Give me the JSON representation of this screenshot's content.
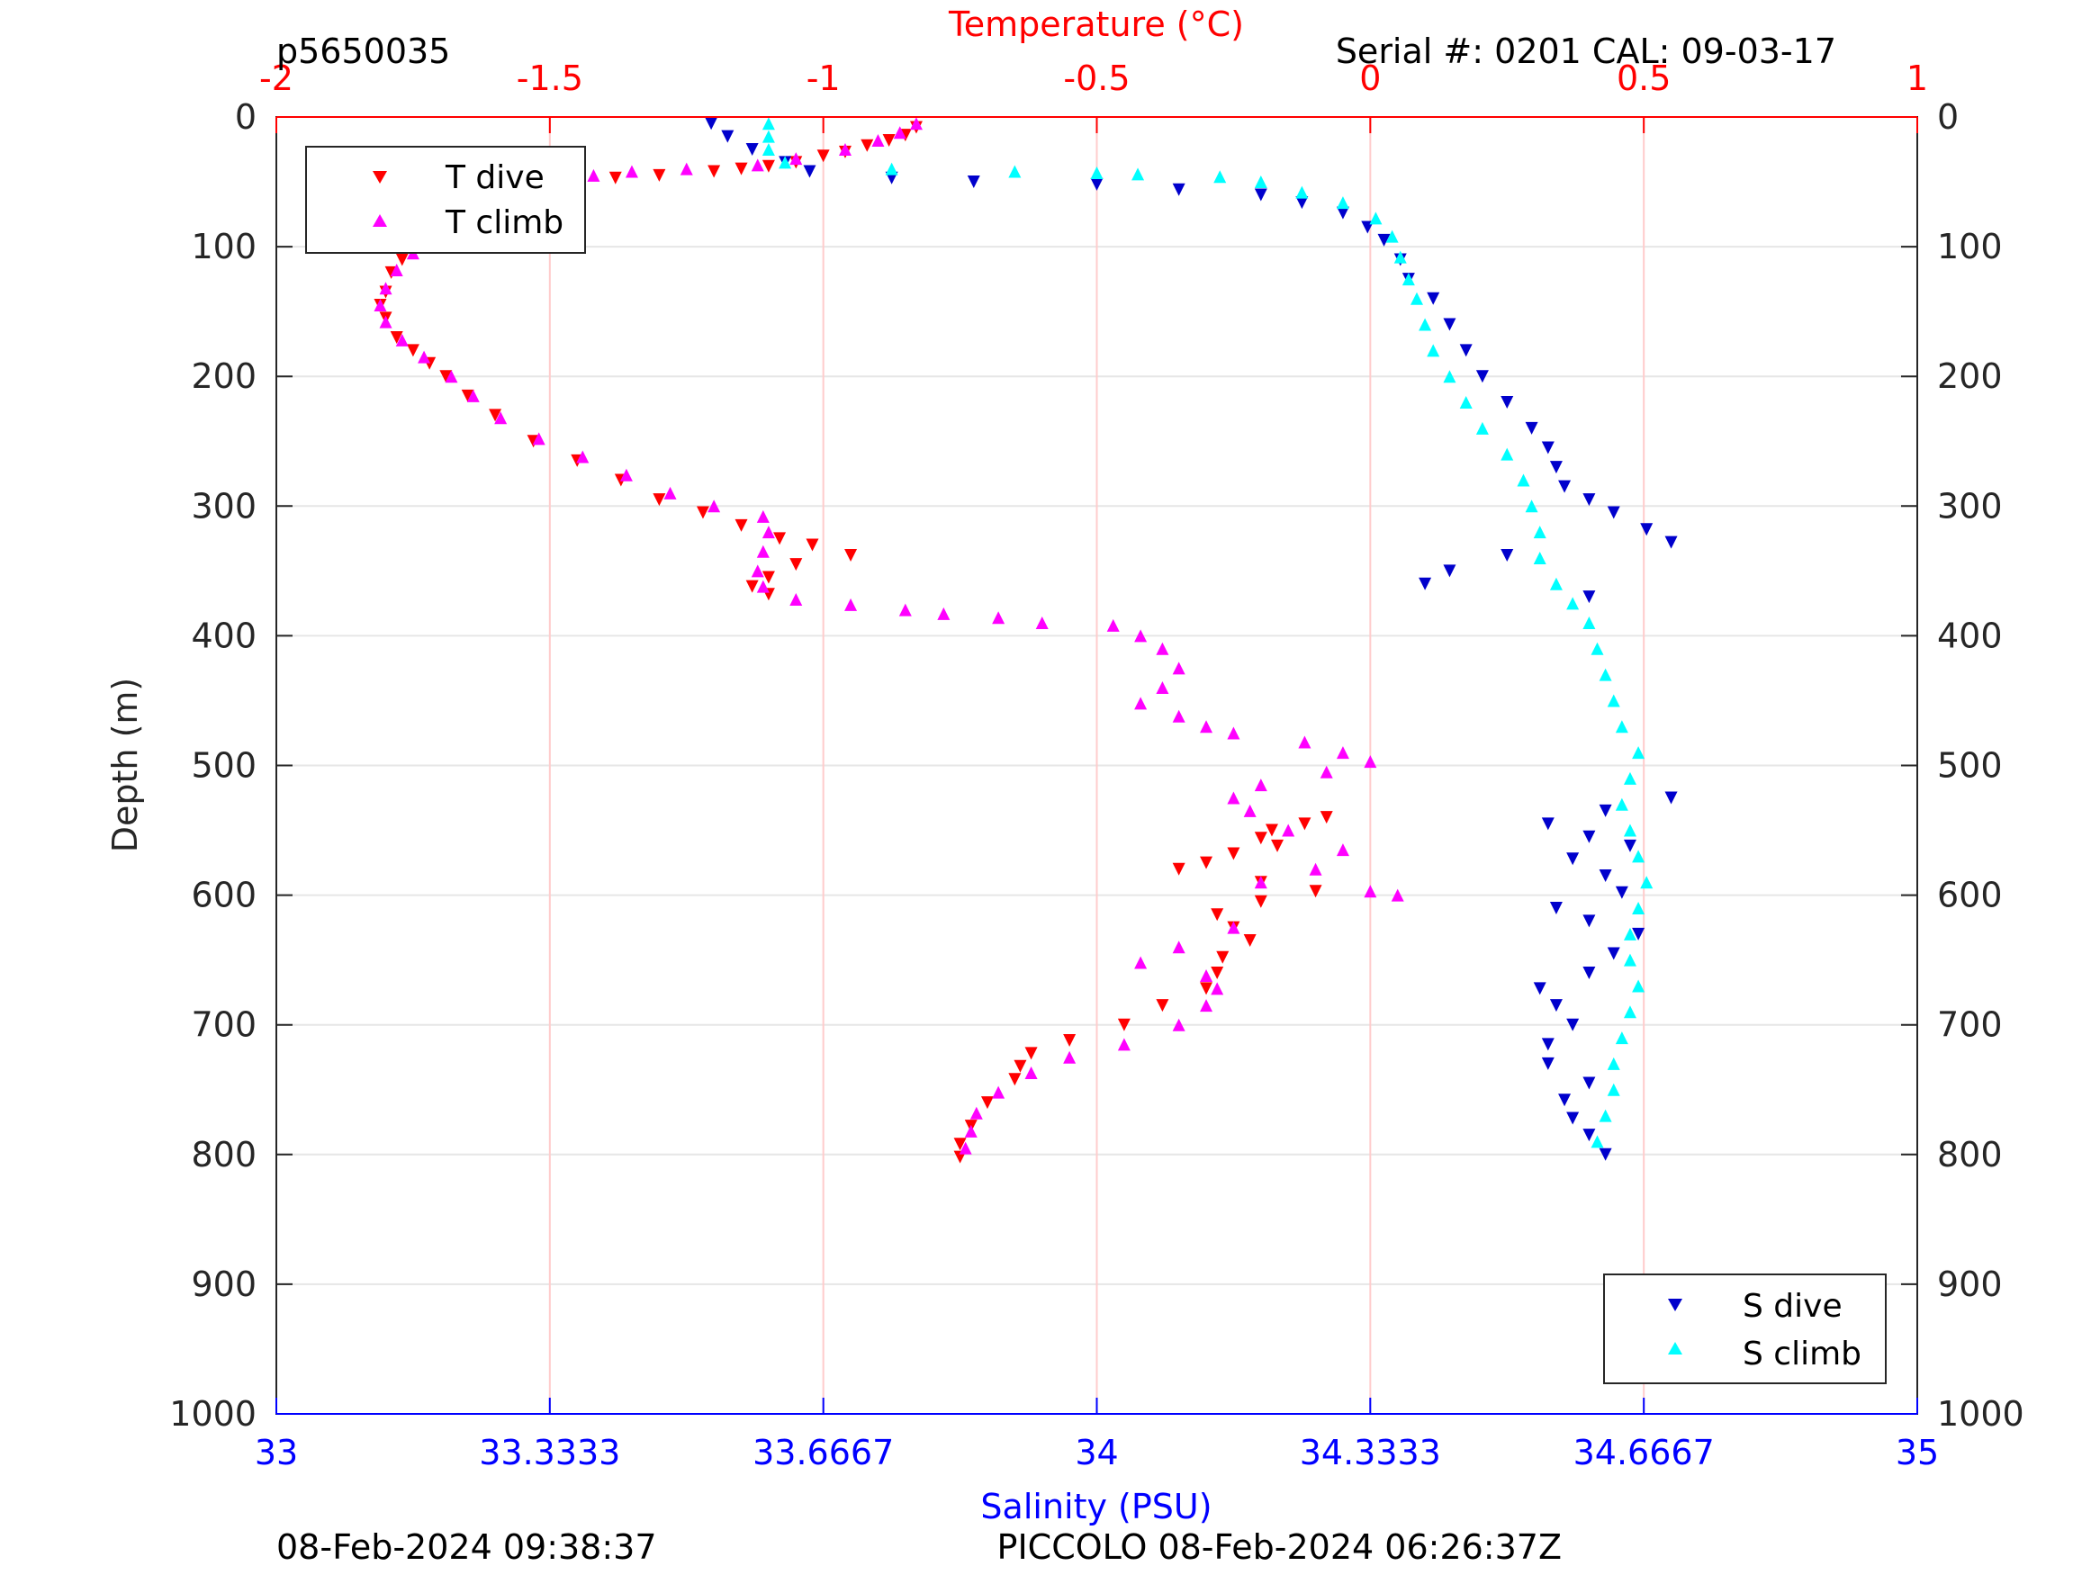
{
  "header": {
    "profile_id": "p5650035",
    "serial": "Serial #: 0201  CAL: 09-03-17"
  },
  "footer": {
    "left": "08-Feb-2024 09:38:37",
    "right": "PICCOLO 08-Feb-2024 06:26:37Z"
  },
  "colors": {
    "t_dive": "#ff0000",
    "t_climb": "#ff00ff",
    "s_dive": "#0000cc",
    "s_climb": "#00ffff",
    "temp_axis": "#ff0000",
    "sal_axis": "#0000ff",
    "depth_axis": "#262626",
    "grid": "#e6e6e6",
    "temp_grid": "#ffcccc"
  },
  "chart_data": {
    "type": "scatter",
    "title": "",
    "ylabel": "Depth (m)",
    "ylim": [
      0,
      1000
    ],
    "y_reversed": true,
    "yticks": [
      0,
      100,
      200,
      300,
      400,
      500,
      600,
      700,
      800,
      900,
      1000
    ],
    "temperature_axis": {
      "label": "Temperature (°C)",
      "lim": [
        -2,
        1
      ],
      "ticks": [
        -2,
        -1.5,
        -1,
        -0.5,
        0,
        0.5,
        1
      ],
      "tick_labels": [
        "-2",
        "-1.5",
        "-1",
        "-0.5",
        "0",
        "0.5",
        "1"
      ],
      "position": "top"
    },
    "salinity_axis": {
      "label": "Salinity (PSU)",
      "lim": [
        33,
        35
      ],
      "ticks": [
        33,
        33.3333,
        33.6667,
        34,
        34.3333,
        34.6667,
        35
      ],
      "tick_labels": [
        "33",
        "33.3333",
        "33.6667",
        "34",
        "34.3333",
        "34.6667",
        "35"
      ],
      "position": "bottom"
    },
    "grid": true,
    "legends": [
      {
        "placement": "top-left",
        "entries": [
          "T dive",
          "T climb"
        ]
      },
      {
        "placement": "bottom-right",
        "entries": [
          "S dive",
          "S climb"
        ]
      }
    ],
    "series": [
      {
        "name": "T dive",
        "axis": "temperature",
        "marker": "triangle-down",
        "points": [
          [
            -0.83,
            8
          ],
          [
            -0.85,
            14
          ],
          [
            -0.88,
            18
          ],
          [
            -0.92,
            22
          ],
          [
            -0.96,
            27
          ],
          [
            -1.0,
            30
          ],
          [
            -1.05,
            35
          ],
          [
            -1.1,
            38
          ],
          [
            -1.15,
            40
          ],
          [
            -1.2,
            42
          ],
          [
            -1.3,
            45
          ],
          [
            -1.38,
            47
          ],
          [
            -1.45,
            50
          ],
          [
            -1.52,
            54
          ],
          [
            -1.58,
            60
          ],
          [
            -1.63,
            70
          ],
          [
            -1.68,
            80
          ],
          [
            -1.71,
            90
          ],
          [
            -1.74,
            100
          ],
          [
            -1.77,
            110
          ],
          [
            -1.79,
            120
          ],
          [
            -1.8,
            135
          ],
          [
            -1.81,
            145
          ],
          [
            -1.8,
            155
          ],
          [
            -1.78,
            170
          ],
          [
            -1.75,
            180
          ],
          [
            -1.72,
            190
          ],
          [
            -1.69,
            200
          ],
          [
            -1.65,
            215
          ],
          [
            -1.6,
            230
          ],
          [
            -1.53,
            250
          ],
          [
            -1.45,
            265
          ],
          [
            -1.37,
            280
          ],
          [
            -1.3,
            295
          ],
          [
            -1.22,
            305
          ],
          [
            -1.15,
            315
          ],
          [
            -1.08,
            325
          ],
          [
            -1.02,
            330
          ],
          [
            -0.95,
            338
          ],
          [
            -1.05,
            345
          ],
          [
            -1.1,
            355
          ],
          [
            -1.13,
            362
          ],
          [
            -1.1,
            368
          ],
          [
            -0.08,
            540
          ],
          [
            -0.12,
            545
          ],
          [
            -0.18,
            550
          ],
          [
            -0.2,
            556
          ],
          [
            -0.17,
            562
          ],
          [
            -0.25,
            568
          ],
          [
            -0.3,
            575
          ],
          [
            -0.35,
            580
          ],
          [
            -0.2,
            590
          ],
          [
            -0.1,
            597
          ],
          [
            -0.2,
            605
          ],
          [
            -0.28,
            615
          ],
          [
            -0.25,
            625
          ],
          [
            -0.22,
            635
          ],
          [
            -0.27,
            648
          ],
          [
            -0.28,
            660
          ],
          [
            -0.3,
            672
          ],
          [
            -0.38,
            685
          ],
          [
            -0.45,
            700
          ],
          [
            -0.55,
            712
          ],
          [
            -0.62,
            722
          ],
          [
            -0.64,
            732
          ],
          [
            -0.65,
            742
          ],
          [
            -0.7,
            760
          ],
          [
            -0.73,
            778
          ],
          [
            -0.75,
            792
          ],
          [
            -0.75,
            802
          ]
        ]
      },
      {
        "name": "T climb",
        "axis": "temperature",
        "marker": "triangle-up",
        "points": [
          [
            -0.83,
            5
          ],
          [
            -0.86,
            12
          ],
          [
            -0.9,
            18
          ],
          [
            -0.96,
            25
          ],
          [
            -1.05,
            32
          ],
          [
            -1.12,
            37
          ],
          [
            -1.25,
            40
          ],
          [
            -1.35,
            42
          ],
          [
            -1.42,
            45
          ],
          [
            -1.5,
            50
          ],
          [
            -1.57,
            58
          ],
          [
            -1.62,
            68
          ],
          [
            -1.67,
            80
          ],
          [
            -1.71,
            92
          ],
          [
            -1.75,
            105
          ],
          [
            -1.78,
            118
          ],
          [
            -1.8,
            132
          ],
          [
            -1.81,
            145
          ],
          [
            -1.8,
            158
          ],
          [
            -1.77,
            172
          ],
          [
            -1.73,
            185
          ],
          [
            -1.68,
            200
          ],
          [
            -1.64,
            215
          ],
          [
            -1.59,
            232
          ],
          [
            -1.52,
            248
          ],
          [
            -1.44,
            262
          ],
          [
            -1.36,
            276
          ],
          [
            -1.28,
            290
          ],
          [
            -1.2,
            300
          ],
          [
            -1.11,
            308
          ],
          [
            -1.1,
            320
          ],
          [
            -1.11,
            335
          ],
          [
            -1.12,
            350
          ],
          [
            -1.11,
            362
          ],
          [
            -1.05,
            372
          ],
          [
            -0.95,
            376
          ],
          [
            -0.85,
            380
          ],
          [
            -0.78,
            383
          ],
          [
            -0.68,
            386
          ],
          [
            -0.6,
            390
          ],
          [
            -0.47,
            392
          ],
          [
            -0.42,
            400
          ],
          [
            -0.38,
            410
          ],
          [
            -0.35,
            425
          ],
          [
            -0.38,
            440
          ],
          [
            -0.42,
            452
          ],
          [
            -0.35,
            462
          ],
          [
            -0.3,
            470
          ],
          [
            -0.25,
            475
          ],
          [
            -0.12,
            482
          ],
          [
            -0.05,
            490
          ],
          [
            0.0,
            497
          ],
          [
            -0.08,
            505
          ],
          [
            -0.2,
            515
          ],
          [
            -0.25,
            525
          ],
          [
            -0.22,
            535
          ],
          [
            -0.15,
            550
          ],
          [
            -0.05,
            565
          ],
          [
            -0.1,
            580
          ],
          [
            -0.2,
            590
          ],
          [
            0.0,
            597
          ],
          [
            0.05,
            600
          ],
          [
            -0.25,
            625
          ],
          [
            -0.35,
            640
          ],
          [
            -0.42,
            652
          ],
          [
            -0.3,
            662
          ],
          [
            -0.28,
            672
          ],
          [
            -0.3,
            685
          ],
          [
            -0.35,
            700
          ],
          [
            -0.45,
            715
          ],
          [
            -0.55,
            725
          ],
          [
            -0.62,
            737
          ],
          [
            -0.68,
            752
          ],
          [
            -0.72,
            768
          ],
          [
            -0.73,
            782
          ],
          [
            -0.74,
            795
          ]
        ]
      },
      {
        "name": "S dive",
        "axis": "salinity",
        "marker": "triangle-down",
        "points": [
          [
            33.53,
            5
          ],
          [
            33.55,
            15
          ],
          [
            33.58,
            25
          ],
          [
            33.62,
            35
          ],
          [
            33.65,
            42
          ],
          [
            33.75,
            47
          ],
          [
            33.85,
            50
          ],
          [
            34.0,
            52
          ],
          [
            34.1,
            56
          ],
          [
            34.2,
            60
          ],
          [
            34.25,
            66
          ],
          [
            34.3,
            74
          ],
          [
            34.33,
            85
          ],
          [
            34.35,
            95
          ],
          [
            34.37,
            110
          ],
          [
            34.38,
            125
          ],
          [
            34.41,
            140
          ],
          [
            34.43,
            160
          ],
          [
            34.45,
            180
          ],
          [
            34.47,
            200
          ],
          [
            34.5,
            220
          ],
          [
            34.53,
            240
          ],
          [
            34.55,
            255
          ],
          [
            34.56,
            270
          ],
          [
            34.57,
            285
          ],
          [
            34.6,
            295
          ],
          [
            34.63,
            305
          ],
          [
            34.67,
            318
          ],
          [
            34.7,
            328
          ],
          [
            34.5,
            338
          ],
          [
            34.43,
            350
          ],
          [
            34.4,
            360
          ],
          [
            34.6,
            370
          ],
          [
            34.7,
            525
          ],
          [
            34.62,
            535
          ],
          [
            34.55,
            545
          ],
          [
            34.6,
            555
          ],
          [
            34.65,
            562
          ],
          [
            34.58,
            572
          ],
          [
            34.62,
            585
          ],
          [
            34.64,
            598
          ],
          [
            34.56,
            610
          ],
          [
            34.6,
            620
          ],
          [
            34.66,
            630
          ],
          [
            34.63,
            645
          ],
          [
            34.6,
            660
          ],
          [
            34.54,
            672
          ],
          [
            34.56,
            685
          ],
          [
            34.58,
            700
          ],
          [
            34.55,
            715
          ],
          [
            34.55,
            730
          ],
          [
            34.6,
            745
          ],
          [
            34.57,
            758
          ],
          [
            34.58,
            772
          ],
          [
            34.6,
            785
          ],
          [
            34.62,
            800
          ]
        ]
      },
      {
        "name": "S climb",
        "axis": "salinity",
        "marker": "triangle-up",
        "points": [
          [
            33.6,
            5
          ],
          [
            33.6,
            15
          ],
          [
            33.6,
            25
          ],
          [
            33.62,
            35
          ],
          [
            33.75,
            40
          ],
          [
            33.9,
            42
          ],
          [
            34.0,
            43
          ],
          [
            34.05,
            44
          ],
          [
            34.15,
            46
          ],
          [
            34.2,
            50
          ],
          [
            34.25,
            58
          ],
          [
            34.3,
            66
          ],
          [
            34.34,
            78
          ],
          [
            34.36,
            92
          ],
          [
            34.37,
            108
          ],
          [
            34.38,
            125
          ],
          [
            34.39,
            140
          ],
          [
            34.4,
            160
          ],
          [
            34.41,
            180
          ],
          [
            34.43,
            200
          ],
          [
            34.45,
            220
          ],
          [
            34.47,
            240
          ],
          [
            34.5,
            260
          ],
          [
            34.52,
            280
          ],
          [
            34.53,
            300
          ],
          [
            34.54,
            320
          ],
          [
            34.54,
            340
          ],
          [
            34.56,
            360
          ],
          [
            34.58,
            375
          ],
          [
            34.6,
            390
          ],
          [
            34.61,
            410
          ],
          [
            34.62,
            430
          ],
          [
            34.63,
            450
          ],
          [
            34.64,
            470
          ],
          [
            34.66,
            490
          ],
          [
            34.65,
            510
          ],
          [
            34.64,
            530
          ],
          [
            34.65,
            550
          ],
          [
            34.66,
            570
          ],
          [
            34.67,
            590
          ],
          [
            34.66,
            610
          ],
          [
            34.65,
            630
          ],
          [
            34.65,
            650
          ],
          [
            34.66,
            670
          ],
          [
            34.65,
            690
          ],
          [
            34.64,
            710
          ],
          [
            34.63,
            730
          ],
          [
            34.63,
            750
          ],
          [
            34.62,
            770
          ],
          [
            34.61,
            790
          ]
        ]
      }
    ]
  }
}
